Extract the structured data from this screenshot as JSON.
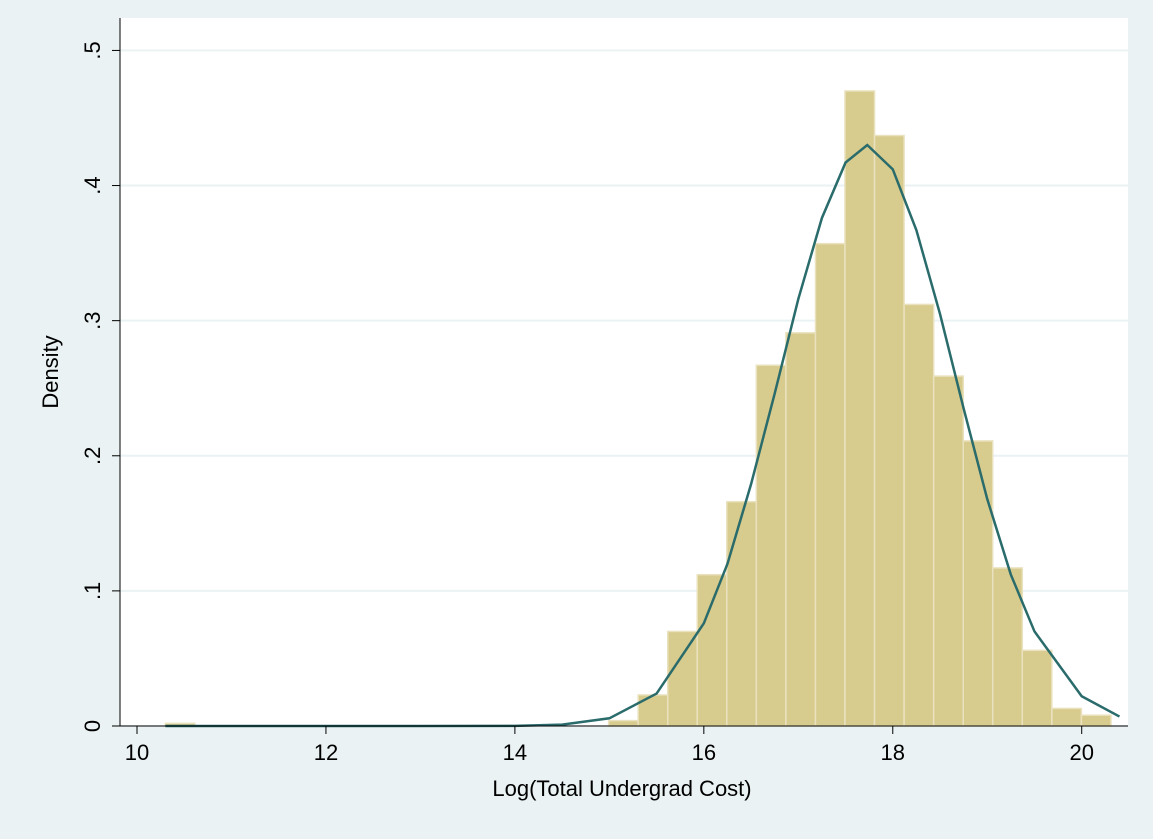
{
  "chart_data": {
    "type": "histogram",
    "x_label": "Log(Total Undergrad Cost)",
    "y_label": "Density",
    "bins": [
      10.3,
      10.613,
      10.926,
      11.238,
      11.551,
      11.864,
      12.177,
      12.49,
      12.802,
      13.115,
      13.428,
      13.741,
      14.054,
      14.366,
      14.679,
      14.992,
      15.305,
      15.618,
      15.93,
      16.243,
      16.556,
      16.869,
      17.182,
      17.494,
      17.807,
      18.12,
      18.433,
      18.746,
      19.058,
      19.371,
      19.684,
      19.997,
      20.31
    ],
    "values": [
      0.002,
      0,
      0,
      0,
      0,
      0,
      0,
      0,
      0,
      0,
      0,
      0,
      0,
      0,
      0,
      0.004,
      0.023,
      0.07,
      0.112,
      0.166,
      0.267,
      0.291,
      0.357,
      0.47,
      0.437,
      0.312,
      0.259,
      0.211,
      0.117,
      0.056,
      0.013,
      0.008
    ],
    "color": "#d8cb8e",
    "density_curve": {
      "color": "#2a6b6b",
      "x": [
        10.3,
        13,
        14,
        14.5,
        15,
        15.5,
        16,
        16.25,
        16.5,
        16.75,
        17,
        17.25,
        17.5,
        17.73,
        18,
        18.25,
        18.5,
        18.75,
        19,
        19.25,
        19.5,
        20,
        20.4
      ],
      "values": [
        0,
        0,
        0.0001,
        0.001,
        0.0057,
        0.024,
        0.076,
        0.12,
        0.179,
        0.246,
        0.316,
        0.376,
        0.417,
        0.43,
        0.412,
        0.367,
        0.305,
        0.235,
        0.168,
        0.112,
        0.07,
        0.022,
        0.007
      ]
    },
    "xlim": [
      9.82,
      20.49
    ],
    "ylim": [
      0,
      0.524
    ],
    "xticks": [
      10,
      12,
      14,
      16,
      18,
      20
    ],
    "yticks": [
      0,
      {
        "value": 0.1,
        "label": ".1"
      },
      {
        "value": 0.2,
        "label": ".2"
      },
      {
        "value": 0.3,
        "label": ".3"
      },
      {
        "value": 0.4,
        "label": ".4"
      },
      {
        "value": 0.5,
        "label": ".5"
      }
    ],
    "grid": true
  }
}
